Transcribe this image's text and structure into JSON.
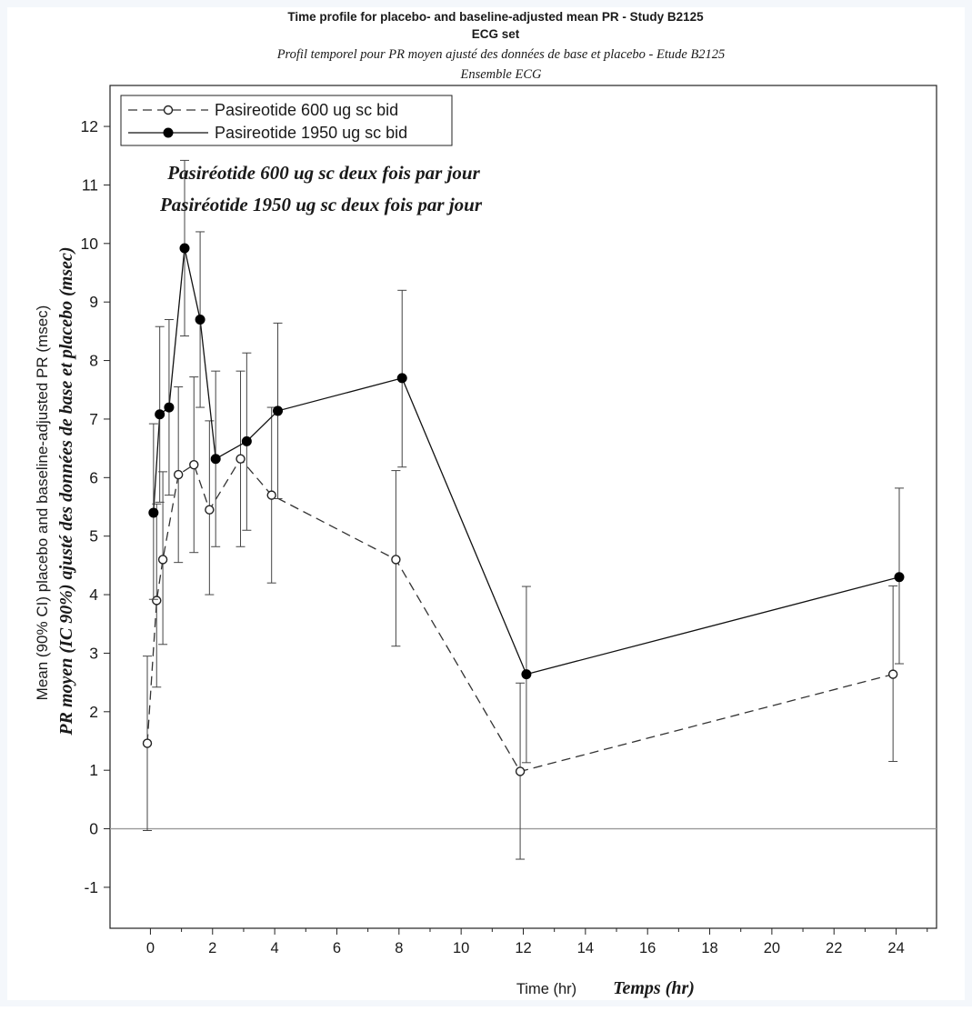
{
  "titles": {
    "line1": "Time profile for placebo- and baseline-adjusted mean PR - Study B2125",
    "line2": "ECG set",
    "line3": "Profil temporel  pour PR moyen ajusté des données de base et placebo - Etude B2125",
    "line4": "Ensemble ECG"
  },
  "annotations": {
    "fr_series1": "Pasiréotide 600 ug sc deux fois par jour",
    "fr_series2": "Pasiréotide 1950 ug sc deux fois par jour"
  },
  "axes": {
    "xlabel": "Time (hr)",
    "xlabel_fr": "Temps (hr)",
    "ylabel": "Mean (90% CI) placebo and baseline-adjusted PR (msec)",
    "ylabel_fr": "PR moyen (IC 90%) ajusté des données de base et placebo (msec)"
  },
  "chart_data": {
    "type": "line",
    "xlim": [
      -1.3,
      25.3
    ],
    "ylim": [
      -1.7,
      12.7
    ],
    "x_ticks": [
      0,
      2,
      4,
      6,
      8,
      10,
      12,
      14,
      16,
      18,
      20,
      22,
      24
    ],
    "y_ticks": [
      -1,
      0,
      1,
      2,
      3,
      4,
      5,
      6,
      7,
      8,
      9,
      10,
      11,
      12
    ],
    "reference_line_y": 0,
    "grid": false,
    "legend_position": "top-left",
    "series": [
      {
        "name": "Pasireotide 600 ug sc bid",
        "style": "dashed",
        "marker": "open-circle",
        "color": "#333333",
        "points": [
          {
            "x": -0.1,
            "y": 1.46,
            "lo": -0.03,
            "hi": 2.95
          },
          {
            "x": 0.2,
            "y": 3.9,
            "lo": 2.42,
            "hi": 5.55
          },
          {
            "x": 0.4,
            "y": 4.6,
            "lo": 3.15,
            "hi": 6.1
          },
          {
            "x": 0.9,
            "y": 6.05,
            "lo": 4.55,
            "hi": 7.55
          },
          {
            "x": 1.4,
            "y": 6.22,
            "lo": 4.72,
            "hi": 7.72
          },
          {
            "x": 1.9,
            "y": 5.45,
            "lo": 4.0,
            "hi": 6.97
          },
          {
            "x": 2.9,
            "y": 6.32,
            "lo": 4.82,
            "hi": 7.82
          },
          {
            "x": 3.9,
            "y": 5.7,
            "lo": 4.2,
            "hi": 7.2
          },
          {
            "x": 7.9,
            "y": 4.6,
            "lo": 3.12,
            "hi": 6.12
          },
          {
            "x": 11.9,
            "y": 0.98,
            "lo": -0.52,
            "hi": 2.49
          },
          {
            "x": 23.9,
            "y": 2.64,
            "lo": 1.15,
            "hi": 4.15
          }
        ]
      },
      {
        "name": "Pasireotide 1950 ug sc bid",
        "style": "solid",
        "marker": "filled-circle",
        "color": "#111111",
        "points": [
          {
            "x": 0.1,
            "y": 5.4,
            "lo": 3.92,
            "hi": 6.92
          },
          {
            "x": 0.3,
            "y": 7.08,
            "lo": 5.58,
            "hi": 8.58
          },
          {
            "x": 0.6,
            "y": 7.2,
            "lo": 5.7,
            "hi": 8.7
          },
          {
            "x": 1.1,
            "y": 9.92,
            "lo": 8.42,
            "hi": 11.42
          },
          {
            "x": 1.6,
            "y": 8.7,
            "lo": 7.2,
            "hi": 10.2
          },
          {
            "x": 2.1,
            "y": 6.32,
            "lo": 4.82,
            "hi": 7.82
          },
          {
            "x": 3.1,
            "y": 6.62,
            "lo": 5.1,
            "hi": 8.13
          },
          {
            "x": 4.1,
            "y": 7.14,
            "lo": 5.64,
            "hi": 8.64
          },
          {
            "x": 8.1,
            "y": 7.7,
            "lo": 6.18,
            "hi": 9.2
          },
          {
            "x": 12.1,
            "y": 2.64,
            "lo": 1.13,
            "hi": 4.14
          },
          {
            "x": 24.1,
            "y": 4.3,
            "lo": 2.82,
            "hi": 5.82
          }
        ]
      }
    ]
  }
}
